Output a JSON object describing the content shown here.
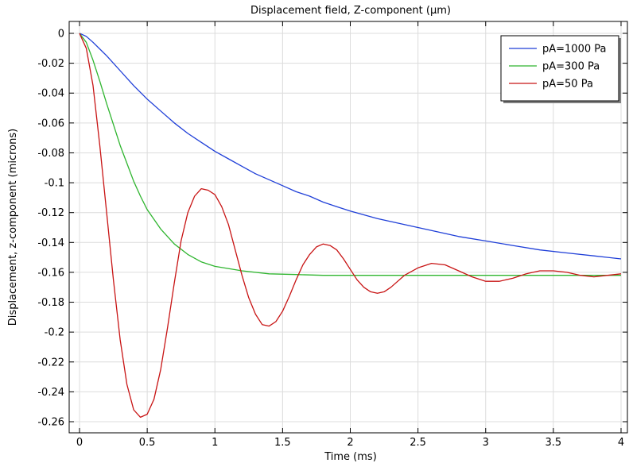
{
  "chart_data": {
    "type": "line",
    "title": "Displacement field, Z-component (µm)",
    "xlabel": "Time (ms)",
    "ylabel": "Displacement, z-component (microns)",
    "xlim": [
      0,
      4
    ],
    "ylim": [
      -0.265,
      0.003
    ],
    "xticks": [
      0,
      0.5,
      1,
      1.5,
      2,
      2.5,
      3,
      3.5,
      4
    ],
    "xtick_labels": [
      "0",
      "0.5",
      "1",
      "1.5",
      "2",
      "2.5",
      "3",
      "3.5",
      "4"
    ],
    "yticks": [
      0,
      -0.02,
      -0.04,
      -0.06,
      -0.08,
      -0.1,
      -0.12,
      -0.14,
      -0.16,
      -0.18,
      -0.2,
      -0.22,
      -0.24,
      -0.26
    ],
    "ytick_labels": [
      "0",
      "-0.02",
      "-0.04",
      "-0.06",
      "-0.08",
      "-0.1",
      "-0.12",
      "-0.14",
      "-0.16",
      "-0.18",
      "-0.2",
      "-0.22",
      "-0.24",
      "-0.26"
    ],
    "grid": true,
    "legend_position": "top-right",
    "series": [
      {
        "name": "pA=1000 Pa",
        "color": "#1f3fd8",
        "points": [
          [
            0,
            0
          ],
          [
            0.05,
            -0.002
          ],
          [
            0.1,
            -0.006
          ],
          [
            0.2,
            -0.015
          ],
          [
            0.3,
            -0.025
          ],
          [
            0.4,
            -0.035
          ],
          [
            0.5,
            -0.044
          ],
          [
            0.6,
            -0.052
          ],
          [
            0.7,
            -0.06
          ],
          [
            0.8,
            -0.067
          ],
          [
            0.9,
            -0.073
          ],
          [
            1.0,
            -0.079
          ],
          [
            1.1,
            -0.084
          ],
          [
            1.2,
            -0.089
          ],
          [
            1.3,
            -0.094
          ],
          [
            1.4,
            -0.098
          ],
          [
            1.5,
            -0.102
          ],
          [
            1.6,
            -0.106
          ],
          [
            1.7,
            -0.109
          ],
          [
            1.8,
            -0.113
          ],
          [
            1.9,
            -0.116
          ],
          [
            2.0,
            -0.119
          ],
          [
            2.2,
            -0.124
          ],
          [
            2.4,
            -0.128
          ],
          [
            2.6,
            -0.132
          ],
          [
            2.8,
            -0.136
          ],
          [
            3.0,
            -0.139
          ],
          [
            3.2,
            -0.142
          ],
          [
            3.4,
            -0.145
          ],
          [
            3.6,
            -0.147
          ],
          [
            3.8,
            -0.149
          ],
          [
            4.0,
            -0.151
          ]
        ]
      },
      {
        "name": "pA=300 Pa",
        "color": "#2fb52f",
        "points": [
          [
            0,
            0
          ],
          [
            0.05,
            -0.006
          ],
          [
            0.1,
            -0.018
          ],
          [
            0.15,
            -0.032
          ],
          [
            0.2,
            -0.047
          ],
          [
            0.25,
            -0.061
          ],
          [
            0.3,
            -0.075
          ],
          [
            0.35,
            -0.087
          ],
          [
            0.4,
            -0.099
          ],
          [
            0.45,
            -0.109
          ],
          [
            0.5,
            -0.118
          ],
          [
            0.6,
            -0.131
          ],
          [
            0.7,
            -0.141
          ],
          [
            0.8,
            -0.148
          ],
          [
            0.9,
            -0.153
          ],
          [
            1.0,
            -0.156
          ],
          [
            1.2,
            -0.159
          ],
          [
            1.4,
            -0.161
          ],
          [
            1.6,
            -0.1615
          ],
          [
            1.8,
            -0.162
          ],
          [
            2.0,
            -0.162
          ],
          [
            2.5,
            -0.162
          ],
          [
            3.0,
            -0.162
          ],
          [
            3.5,
            -0.162
          ],
          [
            4.0,
            -0.162
          ]
        ]
      },
      {
        "name": "pA=50 Pa",
        "color": "#c81414",
        "points": [
          [
            0,
            0
          ],
          [
            0.05,
            -0.01
          ],
          [
            0.1,
            -0.035
          ],
          [
            0.15,
            -0.075
          ],
          [
            0.2,
            -0.12
          ],
          [
            0.25,
            -0.165
          ],
          [
            0.3,
            -0.205
          ],
          [
            0.35,
            -0.235
          ],
          [
            0.4,
            -0.252
          ],
          [
            0.45,
            -0.257
          ],
          [
            0.5,
            -0.255
          ],
          [
            0.55,
            -0.245
          ],
          [
            0.6,
            -0.225
          ],
          [
            0.65,
            -0.197
          ],
          [
            0.7,
            -0.167
          ],
          [
            0.75,
            -0.139
          ],
          [
            0.8,
            -0.12
          ],
          [
            0.85,
            -0.109
          ],
          [
            0.9,
            -0.104
          ],
          [
            0.95,
            -0.105
          ],
          [
            1.0,
            -0.108
          ],
          [
            1.05,
            -0.116
          ],
          [
            1.1,
            -0.128
          ],
          [
            1.15,
            -0.145
          ],
          [
            1.2,
            -0.162
          ],
          [
            1.25,
            -0.177
          ],
          [
            1.3,
            -0.188
          ],
          [
            1.35,
            -0.195
          ],
          [
            1.4,
            -0.196
          ],
          [
            1.45,
            -0.193
          ],
          [
            1.5,
            -0.186
          ],
          [
            1.55,
            -0.176
          ],
          [
            1.6,
            -0.165
          ],
          [
            1.65,
            -0.155
          ],
          [
            1.7,
            -0.148
          ],
          [
            1.75,
            -0.143
          ],
          [
            1.8,
            -0.141
          ],
          [
            1.85,
            -0.142
          ],
          [
            1.9,
            -0.145
          ],
          [
            1.95,
            -0.151
          ],
          [
            2.0,
            -0.158
          ],
          [
            2.05,
            -0.165
          ],
          [
            2.1,
            -0.17
          ],
          [
            2.15,
            -0.173
          ],
          [
            2.2,
            -0.174
          ],
          [
            2.25,
            -0.173
          ],
          [
            2.3,
            -0.17
          ],
          [
            2.4,
            -0.162
          ],
          [
            2.5,
            -0.157
          ],
          [
            2.6,
            -0.154
          ],
          [
            2.7,
            -0.155
          ],
          [
            2.8,
            -0.159
          ],
          [
            2.9,
            -0.163
          ],
          [
            3.0,
            -0.166
          ],
          [
            3.1,
            -0.166
          ],
          [
            3.2,
            -0.164
          ],
          [
            3.3,
            -0.161
          ],
          [
            3.4,
            -0.159
          ],
          [
            3.5,
            -0.159
          ],
          [
            3.6,
            -0.16
          ],
          [
            3.7,
            -0.162
          ],
          [
            3.8,
            -0.163
          ],
          [
            3.9,
            -0.162
          ],
          [
            4.0,
            -0.161
          ]
        ]
      }
    ]
  }
}
